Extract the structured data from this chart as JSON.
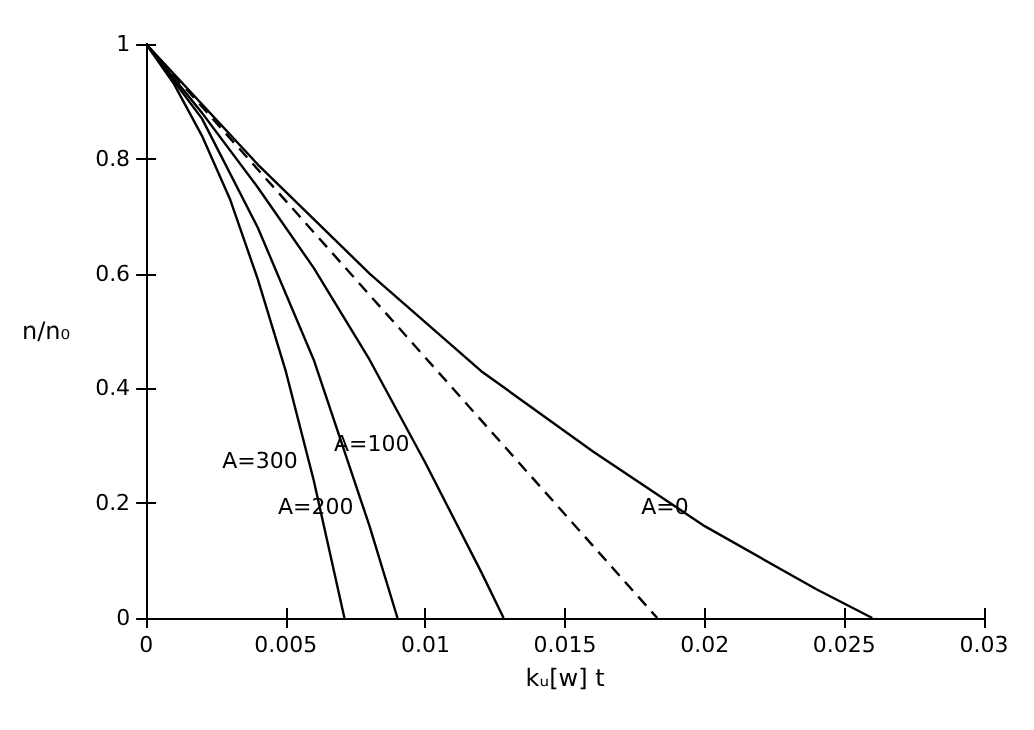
{
  "chart_data": {
    "type": "line",
    "xlabel": "kᵤ[w] t",
    "ylabel": "n/n₀",
    "xlim": [
      0,
      0.03
    ],
    "xticks": [
      0,
      0.005,
      0.01,
      0.015,
      0.02,
      0.025,
      0.03
    ],
    "ylim": [
      0,
      1
    ],
    "yticks": [
      0,
      0.2,
      0.4,
      0.6,
      0.8,
      1
    ],
    "grid": false,
    "marker": "none",
    "series": [
      {
        "color": "#000000",
        "x": [
          0,
          0.004,
          0.008,
          0.012,
          0.016,
          0.02,
          0.024,
          0.026
        ],
        "values": [
          1,
          0.79,
          0.6,
          0.43,
          0.29,
          0.16,
          0.05,
          0
        ]
      },
      {
        "color": "#000000",
        "line_style": "dashed",
        "x": [
          0,
          0.0183
        ],
        "values": [
          1,
          0
        ]
      },
      {
        "color": "#000000",
        "x": [
          0,
          0.002,
          0.004,
          0.006,
          0.008,
          0.01,
          0.012,
          0.0128
        ],
        "values": [
          1,
          0.88,
          0.75,
          0.61,
          0.45,
          0.27,
          0.08,
          0
        ]
      },
      {
        "color": "#000000",
        "x": [
          0,
          0.002,
          0.004,
          0.006,
          0.008,
          0.009
        ],
        "values": [
          1,
          0.87,
          0.68,
          0.45,
          0.16,
          0
        ]
      },
      {
        "color": "#000000",
        "x": [
          0,
          0.001,
          0.002,
          0.003,
          0.004,
          0.005,
          0.006,
          0.0071
        ],
        "values": [
          1,
          0.93,
          0.84,
          0.73,
          0.59,
          0.43,
          0.24,
          0
        ]
      }
    ],
    "annotations": [
      {
        "text": "A=0",
        "x": 0.02,
        "y": 0.16
      },
      {
        "text": "A=100",
        "x": 0.01,
        "y": 0.27
      },
      {
        "text": "A=200",
        "x": 0.008,
        "y": 0.16
      },
      {
        "text": "A=300",
        "x": 0.006,
        "y": 0.24
      }
    ]
  }
}
